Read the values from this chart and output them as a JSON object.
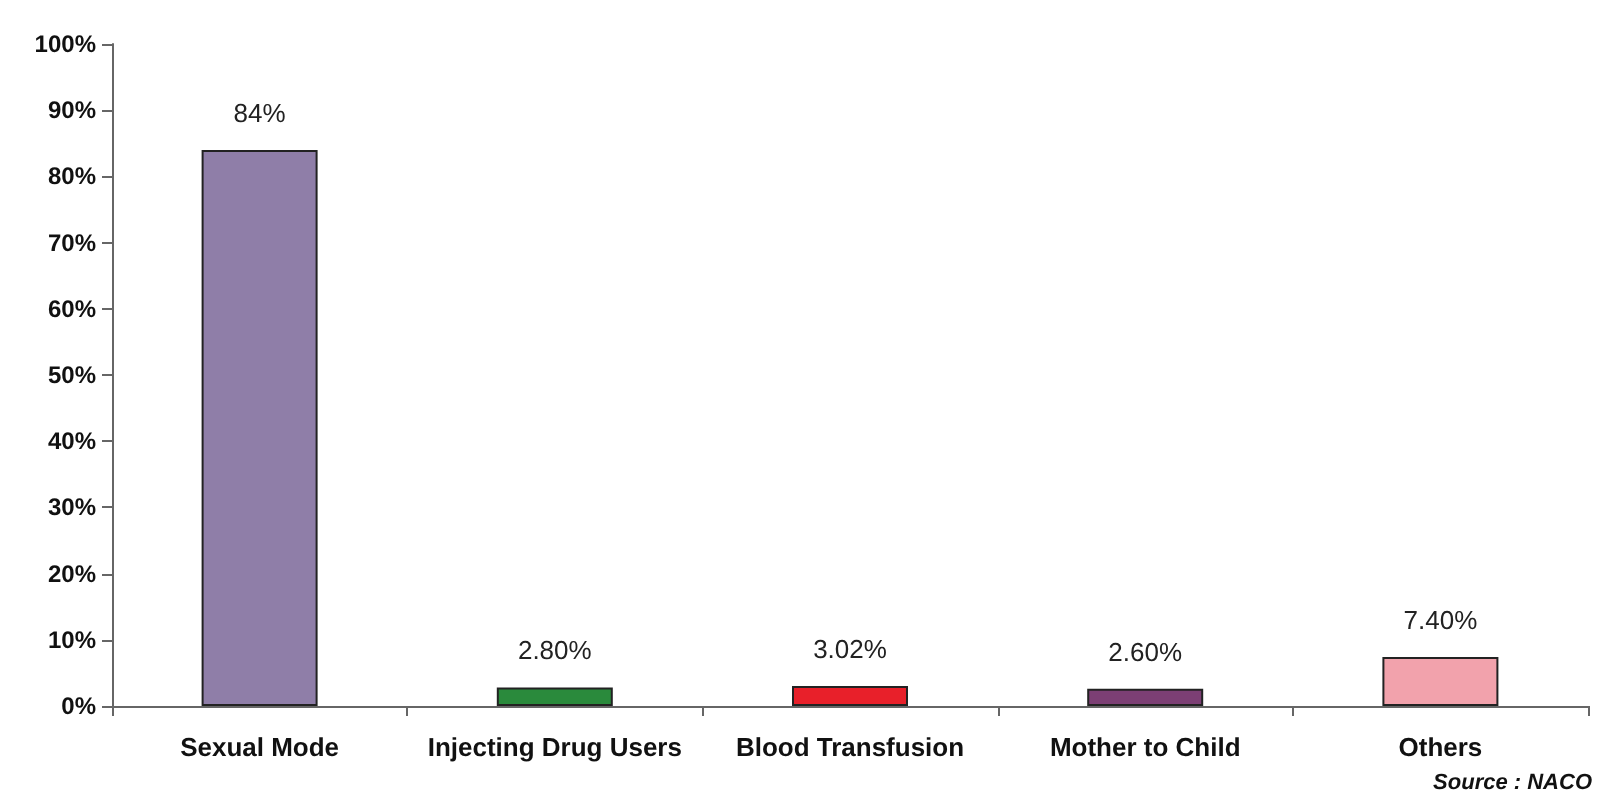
{
  "chart_data": {
    "type": "bar",
    "categories": [
      "Sexual Mode",
      "Injecting Drug Users",
      "Blood Transfusion",
      "Mother to Child",
      "Others"
    ],
    "values": [
      84,
      2.8,
      3.02,
      2.6,
      7.4
    ],
    "colors": [
      "#8f7ea8",
      "#2a8a3c",
      "#e8202a",
      "#7c3f74",
      "#f2a2ac"
    ],
    "value_labels": [
      "84%",
      "2.80%",
      "3.02%",
      "2.60%",
      "7.40%"
    ],
    "ylim": [
      0,
      100
    ],
    "yticks": [
      {
        "value": 0,
        "label": "0%"
      },
      {
        "value": 10,
        "label": "10%"
      },
      {
        "value": 20,
        "label": "20%"
      },
      {
        "value": 30,
        "label": "30%"
      },
      {
        "value": 40,
        "label": "40%"
      },
      {
        "value": 50,
        "label": "50%"
      },
      {
        "value": 60,
        "label": "60%"
      },
      {
        "value": 70,
        "label": "70%"
      },
      {
        "value": 80,
        "label": "80%"
      },
      {
        "value": 90,
        "label": "90%"
      },
      {
        "value": 100,
        "label": "100%"
      }
    ],
    "grid": false,
    "annotations": [
      "Source : NACO"
    ]
  }
}
